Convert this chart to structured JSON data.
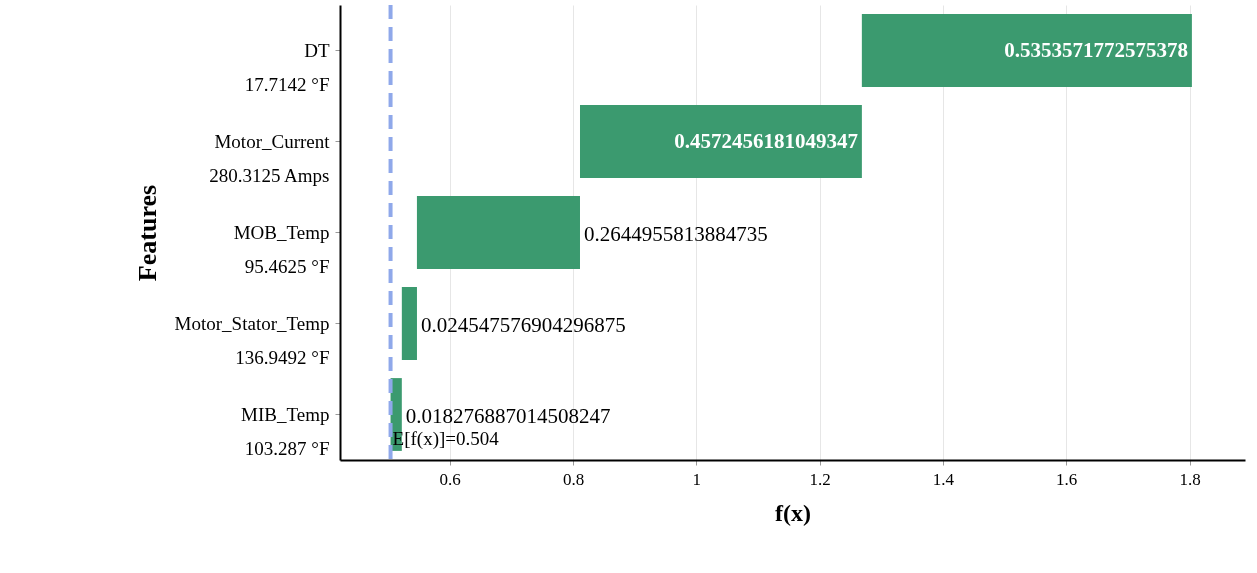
{
  "chart_data": {
    "type": "bar",
    "orientation": "horizontal",
    "xlabel": "f(x)",
    "ylabel": "Features",
    "categories": [
      "DT\n17.7142 °F",
      "Motor_Current\n280.3125 Amps",
      "MOB_Temp\n95.4625 °F",
      "Motor_Stator_Temp\n136.9492 °F",
      "MIB_Temp\n103.287 °F"
    ],
    "values": [
      0.5353571772575378,
      0.4572456181049347,
      0.2644955813884735,
      0.024547576904296875,
      0.018276887014508247
    ],
    "base": [
      1.2685,
      0.8113,
      0.5468,
      0.5223,
      0.504
    ],
    "value_labels": [
      "0.5353571772575378",
      "0.4572456181049347",
      "0.2644955813884735",
      "0.024547576904296875",
      "0.018276887014508247"
    ],
    "color": "#3b9a6f",
    "xlim": [
      0.422,
      1.89
    ],
    "xticks": [
      0.6,
      0.8,
      1,
      1.2,
      1.4,
      1.6,
      1.8
    ],
    "grid": "x",
    "ref_lines": [
      {
        "axis": "x",
        "value": 0.504,
        "label": "E[f(x)]=0.504",
        "color": "#8fa8ea",
        "line_style": "dashed"
      }
    ]
  }
}
